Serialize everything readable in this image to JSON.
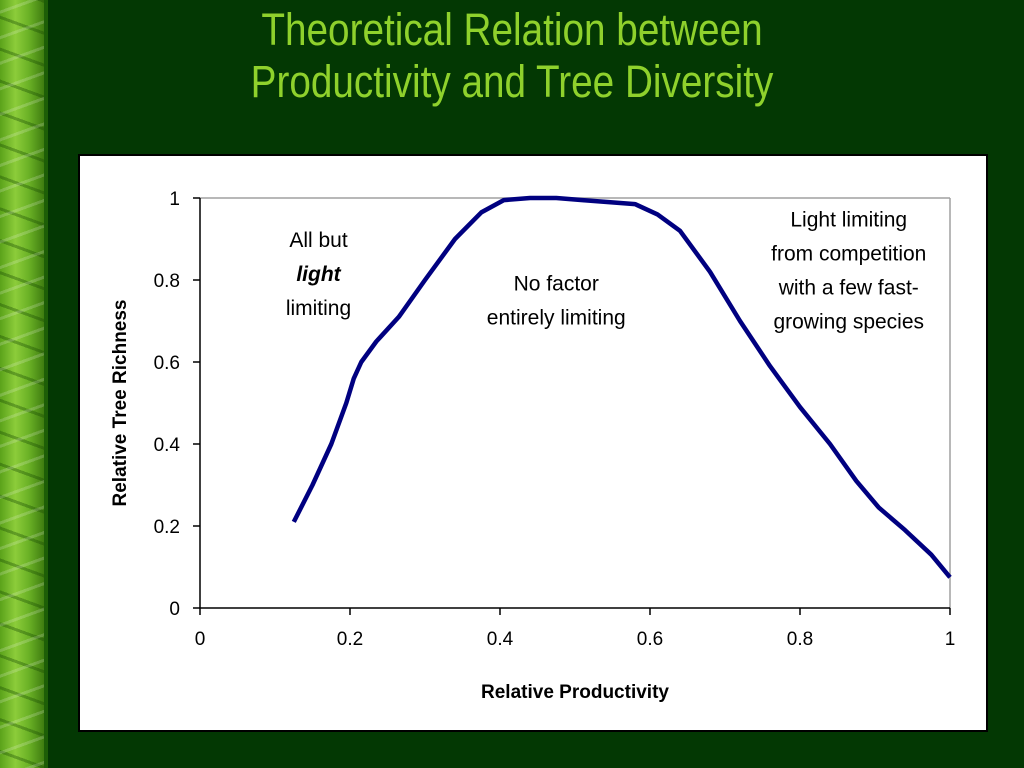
{
  "title_lines": [
    "Theoretical Relation between",
    "Productivity and Tree Diversity"
  ],
  "chart_data": {
    "type": "line",
    "xlabel": "Relative Productivity",
    "ylabel": "Relative Tree Richness",
    "xlim": [
      0,
      1
    ],
    "ylim": [
      0,
      1
    ],
    "x_ticks": [
      0,
      0.2,
      0.4,
      0.6,
      0.8,
      1
    ],
    "x_tick_labels": [
      "0",
      "0.2",
      "0.4",
      "0.6",
      "0.8",
      "1"
    ],
    "y_ticks": [
      0,
      0.2,
      0.4,
      0.6,
      0.8,
      1
    ],
    "y_tick_labels": [
      "0",
      "0.2",
      "0.4",
      "0.6",
      "0.8",
      "1"
    ],
    "grid": false,
    "legend": "none",
    "series": [
      {
        "color": "#000080",
        "x": [
          0.125,
          0.15,
          0.175,
          0.195,
          0.205,
          0.215,
          0.235,
          0.265,
          0.3,
          0.34,
          0.375,
          0.405,
          0.44,
          0.475,
          0.51,
          0.545,
          0.58,
          0.61,
          0.64,
          0.68,
          0.72,
          0.76,
          0.8,
          0.84,
          0.875,
          0.905,
          0.94,
          0.975,
          1.0
        ],
        "y": [
          0.21,
          0.3,
          0.4,
          0.5,
          0.56,
          0.6,
          0.65,
          0.71,
          0.8,
          0.9,
          0.965,
          0.995,
          1.0,
          1.0,
          0.995,
          0.99,
          0.985,
          0.96,
          0.92,
          0.82,
          0.7,
          0.59,
          0.49,
          0.4,
          0.31,
          0.245,
          0.19,
          0.13,
          0.075
        ]
      }
    ],
    "annotations": [
      {
        "name": "annotation-all-but-light",
        "lines": [
          "All but",
          "light",
          "limiting"
        ],
        "italic_bold_line": 1,
        "x": 0.158,
        "y": 0.88
      },
      {
        "name": "annotation-no-factor",
        "lines": [
          "No factor",
          "entirely limiting"
        ],
        "italic_bold_line": null,
        "x": 0.475,
        "y": 0.775
      },
      {
        "name": "annotation-light-limiting",
        "lines": [
          "Light limiting",
          "from competition",
          "with a few fast-",
          "growing species"
        ],
        "italic_bold_line": null,
        "x": 0.865,
        "y": 0.93
      }
    ]
  }
}
